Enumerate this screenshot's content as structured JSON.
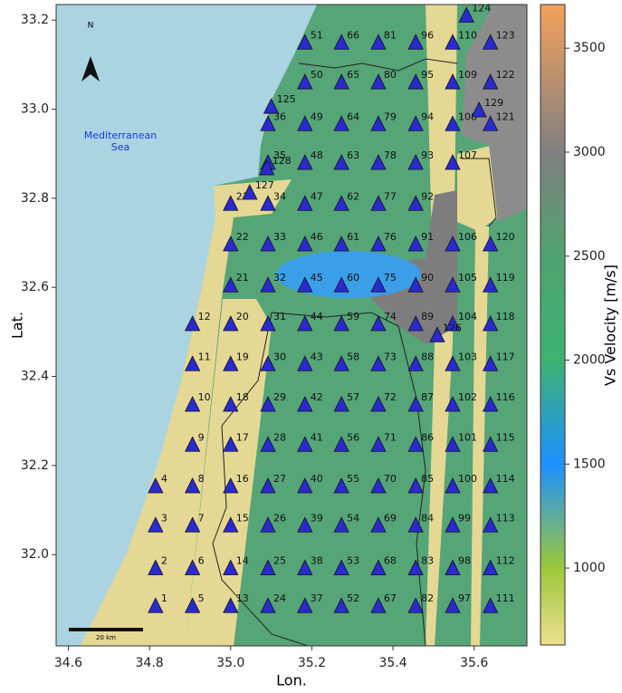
{
  "chart_data": {
    "type": "map",
    "x_label": "Lon.",
    "y_label": "Lat.",
    "xlim": [
      34.57,
      35.73
    ],
    "ylim": [
      31.795,
      33.235
    ],
    "xticks": [
      34.6,
      34.8,
      {
        "value": 35.0,
        "label": "35.0"
      },
      35.2,
      35.4,
      35.6
    ],
    "yticks": [
      {
        "value": 32.0,
        "label": "32.0"
      },
      32.2,
      32.4,
      32.6,
      32.8,
      {
        "value": 33.0,
        "label": "33.0"
      },
      33.2
    ],
    "sea_label": "Mediterranean Sea",
    "north_label": "N",
    "scale_label": "20 km",
    "marker_color": "#2a2ad0",
    "colorbar": {
      "label": "Vs Velocity [m/s]",
      "lim": [
        630,
        3710
      ],
      "ticks": [
        1000,
        1500,
        2000,
        2500,
        3000,
        3500
      ],
      "stops": [
        {
          "value": 630,
          "color": "#ece08f"
        },
        {
          "value": 1000,
          "color": "#9cc83a"
        },
        {
          "value": 1500,
          "color": "#1e90ff"
        },
        {
          "value": 2000,
          "color": "#3cb371"
        },
        {
          "value": 2500,
          "color": "#4fa36e"
        },
        {
          "value": 3000,
          "color": "#808080"
        },
        {
          "value": 3710,
          "color": "#f4a15a"
        }
      ]
    },
    "stations": [
      {
        "label": "1",
        "lon": 34.815,
        "lat": 31.884
      },
      {
        "label": "2",
        "lon": 34.815,
        "lat": 31.969
      },
      {
        "label": "3",
        "lon": 34.815,
        "lat": 32.065
      },
      {
        "label": "4",
        "lon": 34.815,
        "lat": 32.153
      },
      {
        "label": "5",
        "lon": 34.906,
        "lat": 31.884
      },
      {
        "label": "6",
        "lon": 34.906,
        "lat": 31.969
      },
      {
        "label": "7",
        "lon": 34.906,
        "lat": 32.065
      },
      {
        "label": "8",
        "lon": 34.906,
        "lat": 32.153
      },
      {
        "label": "9",
        "lon": 34.906,
        "lat": 32.246
      },
      {
        "label": "10",
        "lon": 34.906,
        "lat": 32.336
      },
      {
        "label": "11",
        "lon": 34.906,
        "lat": 32.427
      },
      {
        "label": "12",
        "lon": 34.906,
        "lat": 32.517
      },
      {
        "label": "13",
        "lon": 35.0,
        "lat": 31.884
      },
      {
        "label": "14",
        "lon": 35.0,
        "lat": 31.969
      },
      {
        "label": "15",
        "lon": 35.0,
        "lat": 32.065
      },
      {
        "label": "16",
        "lon": 35.0,
        "lat": 32.153
      },
      {
        "label": "17",
        "lon": 35.0,
        "lat": 32.246
      },
      {
        "label": "18",
        "lon": 35.0,
        "lat": 32.336
      },
      {
        "label": "19",
        "lon": 35.0,
        "lat": 32.427
      },
      {
        "label": "20",
        "lon": 35.0,
        "lat": 32.517
      },
      {
        "label": "21",
        "lon": 35.0,
        "lat": 32.604
      },
      {
        "label": "22",
        "lon": 35.0,
        "lat": 32.696
      },
      {
        "label": "23",
        "lon": 35.0,
        "lat": 32.787
      },
      {
        "label": "24",
        "lon": 35.092,
        "lat": 31.884
      },
      {
        "label": "25",
        "lon": 35.092,
        "lat": 31.969
      },
      {
        "label": "26",
        "lon": 35.092,
        "lat": 32.065
      },
      {
        "label": "27",
        "lon": 35.092,
        "lat": 32.153
      },
      {
        "label": "28",
        "lon": 35.092,
        "lat": 32.246
      },
      {
        "label": "29",
        "lon": 35.092,
        "lat": 32.336
      },
      {
        "label": "30",
        "lon": 35.092,
        "lat": 32.427
      },
      {
        "label": "31",
        "lon": 35.092,
        "lat": 32.517
      },
      {
        "label": "32",
        "lon": 35.092,
        "lat": 32.604
      },
      {
        "label": "33",
        "lon": 35.092,
        "lat": 32.696
      },
      {
        "label": "34",
        "lon": 35.092,
        "lat": 32.787
      },
      {
        "label": "35",
        "lon": 35.092,
        "lat": 32.879
      },
      {
        "label": "36",
        "lon": 35.092,
        "lat": 32.966
      },
      {
        "label": "37",
        "lon": 35.183,
        "lat": 31.884
      },
      {
        "label": "38",
        "lon": 35.183,
        "lat": 31.969
      },
      {
        "label": "39",
        "lon": 35.183,
        "lat": 32.065
      },
      {
        "label": "40",
        "lon": 35.183,
        "lat": 32.153
      },
      {
        "label": "41",
        "lon": 35.183,
        "lat": 32.246
      },
      {
        "label": "42",
        "lon": 35.183,
        "lat": 32.336
      },
      {
        "label": "43",
        "lon": 35.183,
        "lat": 32.427
      },
      {
        "label": "44",
        "lon": 35.183,
        "lat": 32.517
      },
      {
        "label": "45",
        "lon": 35.183,
        "lat": 32.604
      },
      {
        "label": "46",
        "lon": 35.183,
        "lat": 32.696
      },
      {
        "label": "47",
        "lon": 35.183,
        "lat": 32.787
      },
      {
        "label": "48",
        "lon": 35.183,
        "lat": 32.879
      },
      {
        "label": "49",
        "lon": 35.183,
        "lat": 32.966
      },
      {
        "label": "50",
        "lon": 35.183,
        "lat": 33.06
      },
      {
        "label": "51",
        "lon": 35.183,
        "lat": 33.149
      },
      {
        "label": "52",
        "lon": 35.273,
        "lat": 31.884
      },
      {
        "label": "53",
        "lon": 35.273,
        "lat": 31.969
      },
      {
        "label": "54",
        "lon": 35.273,
        "lat": 32.065
      },
      {
        "label": "55",
        "lon": 35.273,
        "lat": 32.153
      },
      {
        "label": "56",
        "lon": 35.273,
        "lat": 32.246
      },
      {
        "label": "57",
        "lon": 35.273,
        "lat": 32.336
      },
      {
        "label": "58",
        "lon": 35.273,
        "lat": 32.427
      },
      {
        "label": "59",
        "lon": 35.273,
        "lat": 32.517
      },
      {
        "label": "60",
        "lon": 35.273,
        "lat": 32.604
      },
      {
        "label": "61",
        "lon": 35.273,
        "lat": 32.696
      },
      {
        "label": "62",
        "lon": 35.273,
        "lat": 32.787
      },
      {
        "label": "63",
        "lon": 35.273,
        "lat": 32.879
      },
      {
        "label": "64",
        "lon": 35.273,
        "lat": 32.966
      },
      {
        "label": "65",
        "lon": 35.273,
        "lat": 33.06
      },
      {
        "label": "66",
        "lon": 35.273,
        "lat": 33.149
      },
      {
        "label": "67",
        "lon": 35.364,
        "lat": 31.884
      },
      {
        "label": "68",
        "lon": 35.364,
        "lat": 31.969
      },
      {
        "label": "69",
        "lon": 35.364,
        "lat": 32.065
      },
      {
        "label": "70",
        "lon": 35.364,
        "lat": 32.153
      },
      {
        "label": "71",
        "lon": 35.364,
        "lat": 32.246
      },
      {
        "label": "72",
        "lon": 35.364,
        "lat": 32.336
      },
      {
        "label": "73",
        "lon": 35.364,
        "lat": 32.427
      },
      {
        "label": "74",
        "lon": 35.364,
        "lat": 32.517
      },
      {
        "label": "75",
        "lon": 35.364,
        "lat": 32.604
      },
      {
        "label": "76",
        "lon": 35.364,
        "lat": 32.696
      },
      {
        "label": "77",
        "lon": 35.364,
        "lat": 32.787
      },
      {
        "label": "78",
        "lon": 35.364,
        "lat": 32.879
      },
      {
        "label": "79",
        "lon": 35.364,
        "lat": 32.966
      },
      {
        "label": "80",
        "lon": 35.364,
        "lat": 33.06
      },
      {
        "label": "81",
        "lon": 35.364,
        "lat": 33.149
      },
      {
        "label": "82",
        "lon": 35.456,
        "lat": 31.884
      },
      {
        "label": "83",
        "lon": 35.456,
        "lat": 31.969
      },
      {
        "label": "84",
        "lon": 35.456,
        "lat": 32.065
      },
      {
        "label": "85",
        "lon": 35.456,
        "lat": 32.153
      },
      {
        "label": "86",
        "lon": 35.456,
        "lat": 32.246
      },
      {
        "label": "87",
        "lon": 35.456,
        "lat": 32.336
      },
      {
        "label": "88",
        "lon": 35.456,
        "lat": 32.427
      },
      {
        "label": "89",
        "lon": 35.456,
        "lat": 32.517
      },
      {
        "label": "90",
        "lon": 35.456,
        "lat": 32.604
      },
      {
        "label": "91",
        "lon": 35.456,
        "lat": 32.696
      },
      {
        "label": "92",
        "lon": 35.456,
        "lat": 32.787
      },
      {
        "label": "93",
        "lon": 35.456,
        "lat": 32.879
      },
      {
        "label": "94",
        "lon": 35.456,
        "lat": 32.966
      },
      {
        "label": "95",
        "lon": 35.456,
        "lat": 33.06
      },
      {
        "label": "96",
        "lon": 35.456,
        "lat": 33.149
      },
      {
        "label": "97",
        "lon": 35.547,
        "lat": 31.884
      },
      {
        "label": "98",
        "lon": 35.547,
        "lat": 31.969
      },
      {
        "label": "99",
        "lon": 35.547,
        "lat": 32.065
      },
      {
        "label": "100",
        "lon": 35.547,
        "lat": 32.153
      },
      {
        "label": "101",
        "lon": 35.547,
        "lat": 32.246
      },
      {
        "label": "102",
        "lon": 35.547,
        "lat": 32.336
      },
      {
        "label": "103",
        "lon": 35.547,
        "lat": 32.427
      },
      {
        "label": "104",
        "lon": 35.547,
        "lat": 32.517
      },
      {
        "label": "105",
        "lon": 35.547,
        "lat": 32.604
      },
      {
        "label": "106",
        "lon": 35.547,
        "lat": 32.696
      },
      {
        "label": "107",
        "lon": 35.547,
        "lat": 32.879
      },
      {
        "label": "108",
        "lon": 35.547,
        "lat": 32.966
      },
      {
        "label": "109",
        "lon": 35.547,
        "lat": 33.06
      },
      {
        "label": "110",
        "lon": 35.547,
        "lat": 33.149
      },
      {
        "label": "111",
        "lon": 35.64,
        "lat": 31.884
      },
      {
        "label": "112",
        "lon": 35.64,
        "lat": 31.969
      },
      {
        "label": "113",
        "lon": 35.64,
        "lat": 32.065
      },
      {
        "label": "114",
        "lon": 35.64,
        "lat": 32.153
      },
      {
        "label": "115",
        "lon": 35.64,
        "lat": 32.246
      },
      {
        "label": "116",
        "lon": 35.64,
        "lat": 32.336
      },
      {
        "label": "117",
        "lon": 35.64,
        "lat": 32.427
      },
      {
        "label": "118",
        "lon": 35.64,
        "lat": 32.517
      },
      {
        "label": "119",
        "lon": 35.64,
        "lat": 32.604
      },
      {
        "label": "120",
        "lon": 35.64,
        "lat": 32.696
      },
      {
        "label": "121",
        "lon": 35.64,
        "lat": 32.966
      },
      {
        "label": "122",
        "lon": 35.64,
        "lat": 33.06
      },
      {
        "label": "123",
        "lon": 35.64,
        "lat": 33.149
      },
      {
        "label": "124",
        "lon": 35.581,
        "lat": 33.21
      },
      {
        "label": "125",
        "lon": 35.1,
        "lat": 33.005
      },
      {
        "label": "126",
        "lon": 35.509,
        "lat": 32.492
      },
      {
        "label": "127",
        "lon": 35.047,
        "lat": 32.812
      },
      {
        "label": "128",
        "lon": 35.089,
        "lat": 32.867
      },
      {
        "label": "129",
        "lon": 35.612,
        "lat": 32.997
      }
    ]
  }
}
